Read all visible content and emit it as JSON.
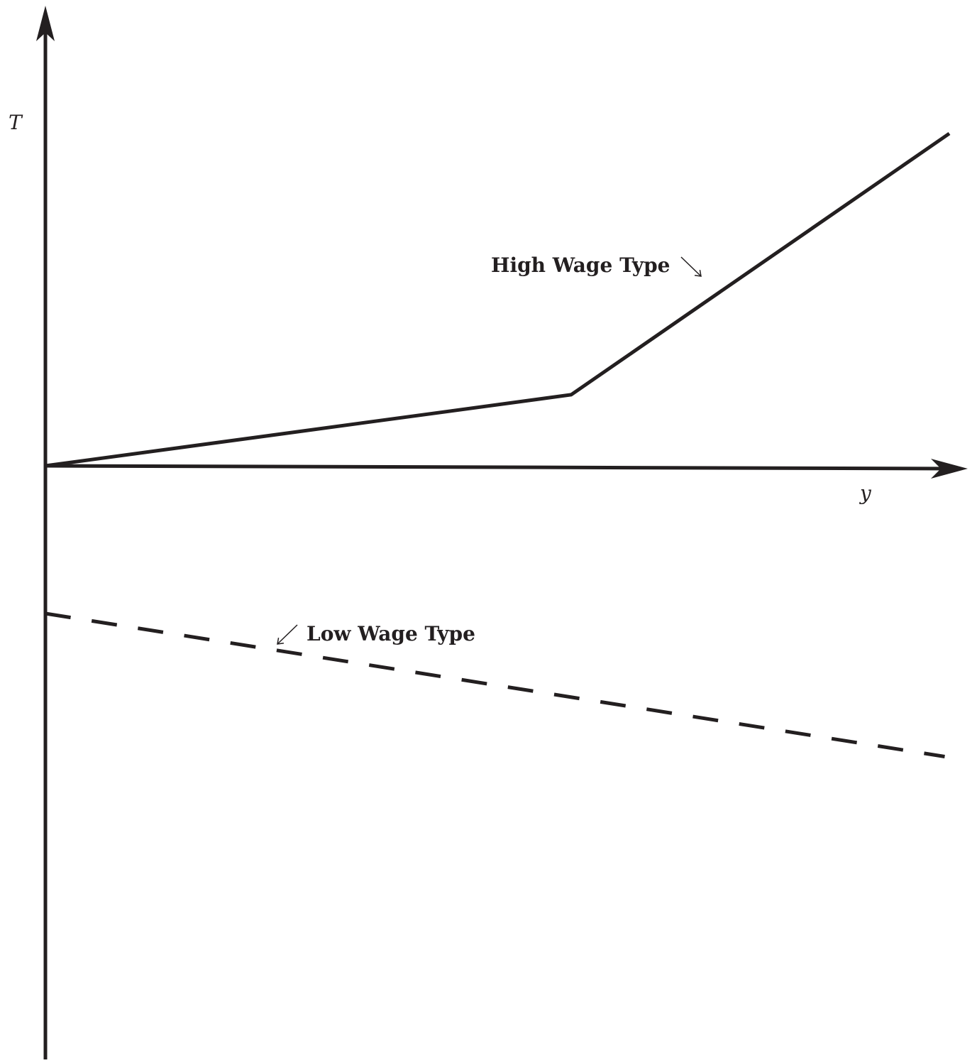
{
  "chart_data": {
    "type": "line",
    "xlabel": "y",
    "ylabel": "T",
    "xlim": [
      0,
      100
    ],
    "ylim": [
      -64,
      50
    ],
    "grid": false,
    "series": [
      {
        "name": "High Wage Type",
        "style": "solid",
        "x": [
          0,
          57,
          98
        ],
        "y": [
          0,
          7.7,
          36
        ]
      },
      {
        "name": "Low Wage Type",
        "style": "dashed",
        "x": [
          0,
          97.5
        ],
        "y": [
          -16,
          -31.5
        ]
      }
    ],
    "annotations": [
      {
        "text": "High Wage Type",
        "pointer": "↘",
        "series": "High Wage Type"
      },
      {
        "text": "Low Wage Type",
        "pointer": "↙",
        "series": "Low Wage Type"
      }
    ]
  }
}
